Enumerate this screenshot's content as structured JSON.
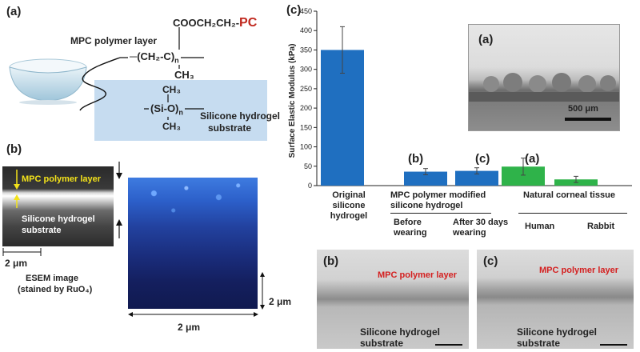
{
  "panel_a": {
    "label": "(a)",
    "mpc_layer_label": "MPC polymer layer",
    "cooch": "COOCH₂CH₂-",
    "pc": "PC",
    "backbone_open": "─(",
    "backbone_main": "CH₂-C",
    "backbone_close": ")",
    "backbone_n": "n",
    "ch3_top": "CH₃",
    "si_ch3_top": "CH₃",
    "si_main": "(Si-O)",
    "si_n": "n",
    "si_ch3_bottom": "CH₃",
    "substrate_line1": "Silicone hydrogel",
    "substrate_line2": "substrate"
  },
  "panel_b": {
    "label": "(b)",
    "sem_mpc_label": "MPC polymer layer",
    "sem_substrate_line1": "Silicone hydrogel",
    "sem_substrate_line2": "substrate",
    "scale_2um": "2 μm",
    "esem_line1": "ESEM image",
    "esem_line2": "(stained by RuO₄)",
    "map_scale_v": "2 μm",
    "map_scale_h": "2 μm"
  },
  "panel_c": {
    "label": "(c)",
    "inset_a_label": "(a)",
    "inset_a_scale": "500 μm",
    "group_mpc_line1": "MPC polymer modified",
    "group_mpc_line2": "silicone hydrogel",
    "group_natural": "Natural corneal tissue",
    "cat1_l1": "Original",
    "cat1_l2": "silicone",
    "cat1_l3": "hydrogel",
    "cat2_l1": "Before",
    "cat2_l2": "wearing",
    "cat3_l1": "After 30 days",
    "cat3_l2": "wearing",
    "cat4": "Human",
    "cat5": "Rabbit",
    "bar_tag_b": "(b)",
    "bar_tag_c": "(c)",
    "bar_tag_a": "(a)"
  },
  "bottom": {
    "b_label": "(b)",
    "b_mpc": "MPC polymer layer",
    "b_sub1": "Silicone hydrogel",
    "b_sub2": "substrate",
    "c_label": "(c)",
    "c_mpc": "MPC polymer layer",
    "c_sub1": "Silicone hydrogel",
    "c_sub2": "substrate"
  },
  "colors": {
    "bar_blue": "#1f6fc0",
    "bar_green": "#2fb34a",
    "substrate_blue": "#c6dcf0",
    "pc_red": "#c0281e",
    "mpc_red": "#d42020",
    "sem_yellow": "#f3e21a"
  },
  "chart_data": {
    "type": "bar",
    "ylabel": "Surface Elastic Modulus (kPa)",
    "ylim": [
      0,
      450
    ],
    "yticks": [
      0,
      50,
      100,
      150,
      200,
      250,
      300,
      350,
      400,
      450
    ],
    "categories": [
      "Original silicone hydrogel",
      "Before wearing",
      "After 30 days wearing",
      "Human",
      "Rabbit"
    ],
    "values": [
      350,
      36,
      38,
      49,
      16
    ],
    "errors": [
      60,
      8,
      8,
      22,
      8
    ],
    "bar_colors": [
      "#1f6fc0",
      "#1f6fc0",
      "#1f6fc0",
      "#2fb34a",
      "#2fb34a"
    ]
  }
}
